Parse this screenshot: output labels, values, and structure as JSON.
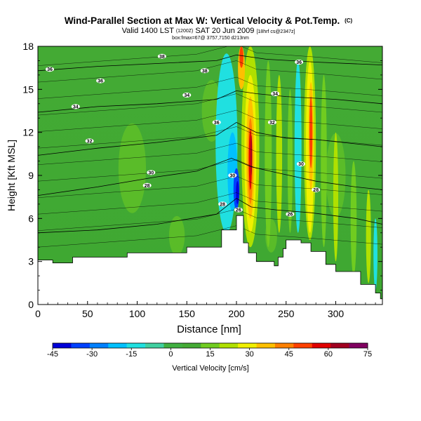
{
  "chart_data": {
    "type": "heatmap",
    "title": "Wind-Parallel Section at Max W: Vertical Velocity & Pot.Temp.",
    "title_mark": "(C)",
    "subtitle_valid": "Valid 1400 LST",
    "subtitle_run": "(1200Z)",
    "subtitle_date": "SAT 20 Jun 2009",
    "subtitle_tail": "[18hrf cs@2347z]",
    "subtitle2": "box:fmax=67@ 3757,7150 d213nm",
    "xlabel": "Distance [nm]",
    "ylabel": "Height [Kft MSL]",
    "xlim": [
      0,
      347
    ],
    "ylim": [
      0,
      18
    ],
    "x_ticks": [
      "0",
      "50",
      "100",
      "150",
      "200",
      "250",
      "300"
    ],
    "y_ticks": [
      "0",
      "3",
      "6",
      "9",
      "12",
      "15",
      "18"
    ],
    "colorbar": {
      "label": "Vertical Velocity [cm/s]",
      "ticks": [
        "-45",
        "-30",
        "-15",
        "0",
        "15",
        "30",
        "45",
        "60",
        "75"
      ],
      "range": [
        -45,
        75
      ],
      "colors": [
        "#0000d8",
        "#0040ff",
        "#0080ff",
        "#00c0ff",
        "#20e0e0",
        "#40d0a0",
        "#40b040",
        "#44aa34",
        "#70cc20",
        "#b0e000",
        "#f0f000",
        "#ffc000",
        "#ff8000",
        "#ff4000",
        "#e00000",
        "#a00020",
        "#800060"
      ]
    },
    "terrain_kft": [
      [
        0,
        3.1
      ],
      [
        15,
        3.1
      ],
      [
        15,
        2.9
      ],
      [
        35,
        2.9
      ],
      [
        35,
        3.3
      ],
      [
        90,
        3.3
      ],
      [
        90,
        3.6
      ],
      [
        150,
        3.6
      ],
      [
        150,
        4.0
      ],
      [
        185,
        4.0
      ],
      [
        185,
        5.2
      ],
      [
        200,
        5.2
      ],
      [
        200,
        6.2
      ],
      [
        207,
        6.2
      ],
      [
        207,
        4.3
      ],
      [
        212,
        4.3
      ],
      [
        212,
        3.6
      ],
      [
        220,
        3.6
      ],
      [
        220,
        3.0
      ],
      [
        238,
        3.0
      ],
      [
        238,
        2.7
      ],
      [
        242,
        2.7
      ],
      [
        242,
        3.3
      ],
      [
        247,
        3.3
      ],
      [
        247,
        3.9
      ],
      [
        250,
        3.9
      ],
      [
        250,
        4.5
      ],
      [
        265,
        4.5
      ],
      [
        265,
        4.3
      ],
      [
        275,
        4.3
      ],
      [
        275,
        3.7
      ],
      [
        290,
        3.7
      ],
      [
        290,
        2.8
      ],
      [
        300,
        2.8
      ],
      [
        300,
        2.3
      ],
      [
        325,
        2.3
      ],
      [
        325,
        1.4
      ],
      [
        340,
        1.4
      ],
      [
        340,
        0.8
      ],
      [
        345,
        0.8
      ],
      [
        345,
        0.4
      ],
      [
        347,
        0.4
      ]
    ],
    "isentropes": [
      {
        "label": "28",
        "pts": [
          [
            0,
            5.0
          ],
          [
            60,
            5.2
          ],
          [
            120,
            5.6
          ],
          [
            180,
            6.3
          ],
          [
            200,
            7.4
          ],
          [
            215,
            6.8
          ],
          [
            240,
            6.6
          ],
          [
            275,
            6.4
          ],
          [
            320,
            6.0
          ],
          [
            347,
            5.6
          ]
        ]
      },
      {
        "label": "30",
        "pts": [
          [
            0,
            7.6
          ],
          [
            60,
            8.2
          ],
          [
            120,
            8.9
          ],
          [
            160,
            9.3
          ],
          [
            195,
            10.2
          ],
          [
            215,
            9.6
          ],
          [
            240,
            9.2
          ],
          [
            280,
            8.6
          ],
          [
            320,
            8.2
          ],
          [
            347,
            8.0
          ]
        ]
      },
      {
        "label": "32",
        "pts": [
          [
            0,
            10.4
          ],
          [
            60,
            10.9
          ],
          [
            120,
            11.3
          ],
          [
            180,
            11.8
          ],
          [
            200,
            12.7
          ],
          [
            220,
            12.0
          ],
          [
            250,
            11.6
          ],
          [
            280,
            11.5
          ],
          [
            347,
            11.0
          ]
        ]
      },
      {
        "label": "34",
        "pts": [
          [
            0,
            13.4
          ],
          [
            60,
            13.8
          ],
          [
            120,
            14.0
          ],
          [
            180,
            14.3
          ],
          [
            200,
            14.9
          ],
          [
            220,
            14.7
          ],
          [
            250,
            14.5
          ],
          [
            300,
            14.3
          ],
          [
            347,
            14.0
          ]
        ]
      },
      {
        "label": "36",
        "pts": [
          [
            0,
            16.3
          ],
          [
            60,
            16.6
          ],
          [
            120,
            16.8
          ],
          [
            180,
            17.0
          ],
          [
            200,
            17.4
          ],
          [
            230,
            17.1
          ],
          [
            280,
            16.9
          ],
          [
            347,
            16.7
          ]
        ]
      }
    ],
    "contour_labels": [
      {
        "text": "36",
        "x": 12,
        "y": 16.4
      },
      {
        "text": "38",
        "x": 125,
        "y": 17.3
      },
      {
        "text": "36",
        "x": 63,
        "y": 15.6
      },
      {
        "text": "38",
        "x": 168,
        "y": 16.3
      },
      {
        "text": "36",
        "x": 263,
        "y": 16.9
      },
      {
        "text": "34",
        "x": 38,
        "y": 13.8
      },
      {
        "text": "34",
        "x": 150,
        "y": 14.6
      },
      {
        "text": "34",
        "x": 239,
        "y": 14.7
      },
      {
        "text": "36",
        "x": 180,
        "y": 12.7
      },
      {
        "text": "32",
        "x": 236,
        "y": 12.7
      },
      {
        "text": "32",
        "x": 52,
        "y": 11.4
      },
      {
        "text": "30",
        "x": 114,
        "y": 9.2
      },
      {
        "text": "30",
        "x": 265,
        "y": 9.8
      },
      {
        "text": "28",
        "x": 110,
        "y": 8.3
      },
      {
        "text": "30",
        "x": 196,
        "y": 9.0
      },
      {
        "text": "28",
        "x": 280,
        "y": 8.0
      },
      {
        "text": "28",
        "x": 186,
        "y": 7.0
      },
      {
        "text": "26",
        "x": 202,
        "y": 6.6
      },
      {
        "text": "26",
        "x": 254,
        "y": 6.3
      }
    ],
    "w_features": [
      {
        "sign": "neg",
        "level": "-30",
        "x": 201,
        "y": 7.5
      },
      {
        "sign": "pos",
        "level": "75",
        "x": 214,
        "y": 10.5
      },
      {
        "sign": "pos",
        "level": "45",
        "x": 274,
        "y": 13.0
      },
      {
        "sign": "pos",
        "level": "45",
        "x": 204,
        "y": 17.5
      }
    ]
  }
}
